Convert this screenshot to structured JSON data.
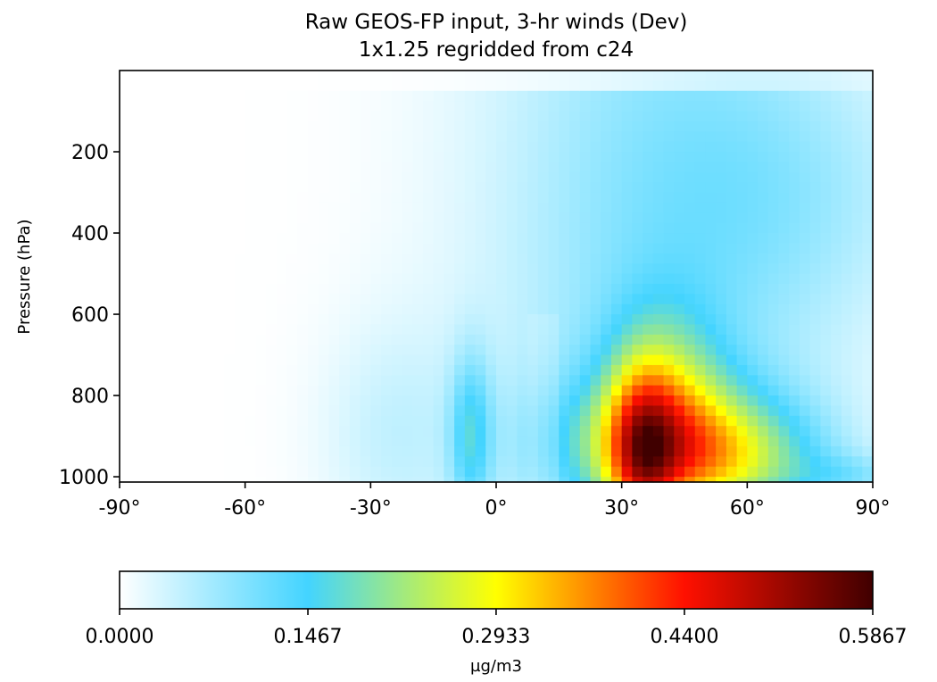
{
  "chart_data": {
    "type": "heatmap",
    "title": "Raw GEOS-FP input, 3-hr winds (Dev)",
    "subtitle": "1x1.25 regridded from c24",
    "xlabel": "",
    "ylabel": "Pressure (hPa)",
    "xlim": [
      -90,
      90
    ],
    "ylim": [
      1013,
      0
    ],
    "x_ticks": [
      -90,
      -60,
      -30,
      0,
      30,
      60,
      90
    ],
    "x_tick_labels": [
      "-90°",
      "-60°",
      "-30°",
      "0°",
      "30°",
      "60°",
      "90°"
    ],
    "y_ticks": [
      200,
      400,
      600,
      800,
      1000
    ],
    "y_tick_labels": [
      "200",
      "400",
      "600",
      "800",
      "1000"
    ],
    "colorbar": {
      "label": "µg/m3",
      "min": 0.0,
      "max": 0.5867,
      "ticks": [
        0.0,
        0.1467,
        0.2933,
        0.44,
        0.5867
      ],
      "tick_labels": [
        "0.0000",
        "0.1467",
        "0.2933",
        "0.4400",
        "0.5867"
      ],
      "colormap_stops": [
        {
          "v": 0.0,
          "color": "#ffffff"
        },
        {
          "v": 0.1467,
          "color": "#43d4ff"
        },
        {
          "v": 0.2933,
          "color": "#ffff00"
        },
        {
          "v": 0.44,
          "color": "#ff1000"
        },
        {
          "v": 0.5867,
          "color": "#400000"
        }
      ]
    },
    "grid": false,
    "field_description": "Zonal-mean concentration vs latitude (x) and pressure (y)",
    "features": [
      {
        "lat": 37,
        "p": 1000,
        "value": 0.5867,
        "width_deg": 9,
        "height_hpa": 360
      },
      {
        "lat": 38,
        "p": 900,
        "value": 0.15,
        "width_deg": 22,
        "height_hpa": 420
      },
      {
        "lat": -5,
        "p": 880,
        "value": 0.13,
        "width_deg": 7,
        "height_hpa": 220
      }
    ]
  }
}
